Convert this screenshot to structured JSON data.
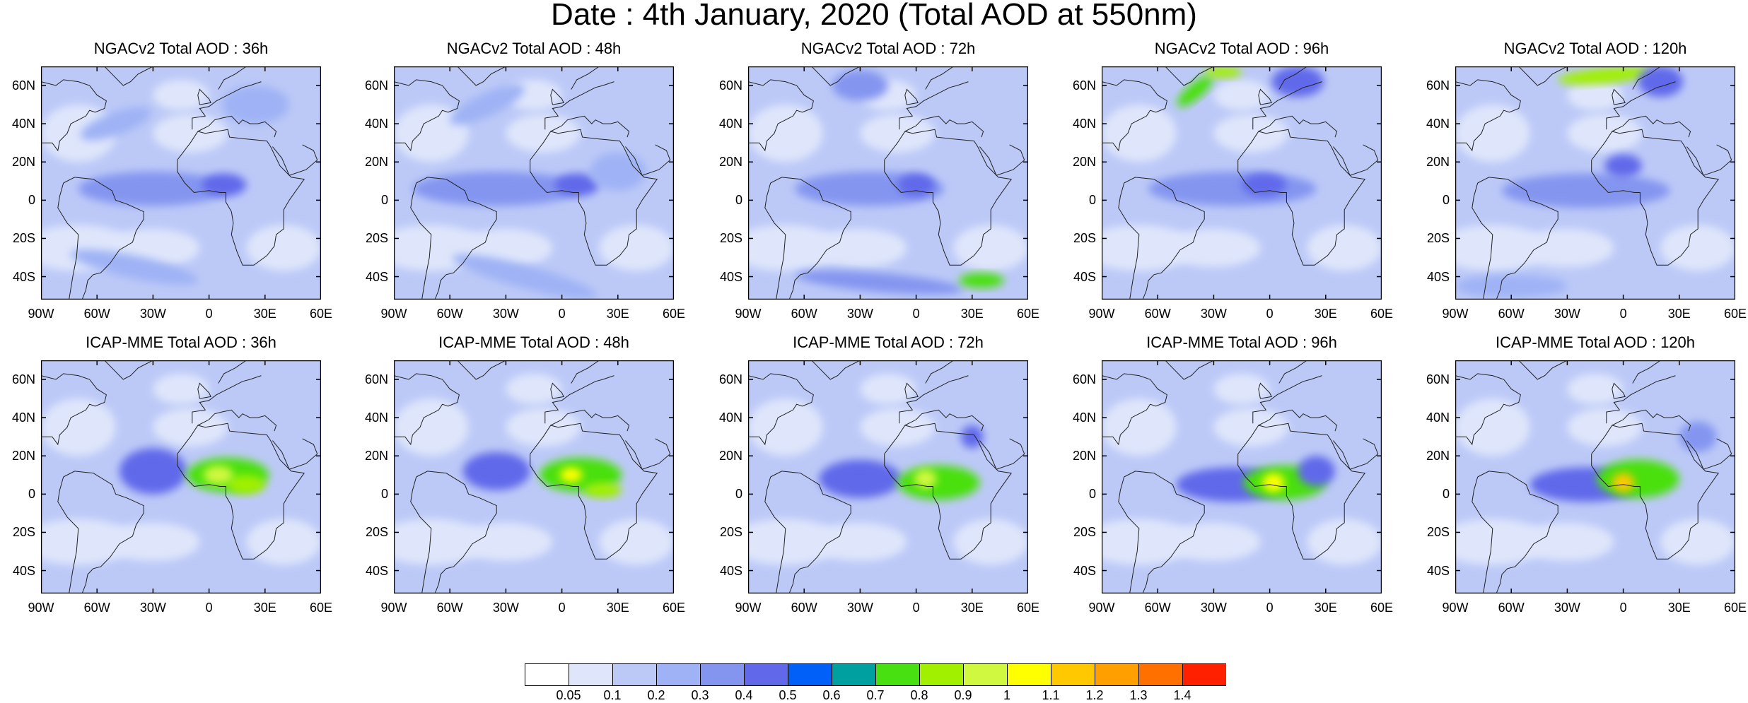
{
  "title": "Date : 4th January, 2020 (Total AOD at 550nm)",
  "lat_ticks": [
    "60N",
    "40N",
    "20N",
    "0",
    "20S",
    "40S"
  ],
  "lon_ticks": [
    "90W",
    "60W",
    "30W",
    "0",
    "30E",
    "60E"
  ],
  "rows": [
    {
      "model": "NGACv2",
      "panels": [
        {
          "title": "NGACv2 Total AOD : 36h"
        },
        {
          "title": "NGACv2 Total AOD : 48h"
        },
        {
          "title": "NGACv2 Total AOD : 72h"
        },
        {
          "title": "NGACv2 Total AOD : 96h"
        },
        {
          "title": "NGACv2 Total AOD : 120h"
        }
      ]
    },
    {
      "model": "ICAP-MME",
      "panels": [
        {
          "title": "ICAP-MME Total AOD : 36h"
        },
        {
          "title": "ICAP-MME Total AOD : 48h"
        },
        {
          "title": "ICAP-MME Total AOD : 72h"
        },
        {
          "title": "ICAP-MME Total AOD : 96h"
        },
        {
          "title": "ICAP-MME Total AOD : 120h"
        }
      ]
    }
  ],
  "colorbar": {
    "levels": [
      "0.05",
      "0.1",
      "0.2",
      "0.3",
      "0.4",
      "0.5",
      "0.6",
      "0.7",
      "0.8",
      "0.9",
      "1",
      "1.1",
      "1.2",
      "1.3",
      "1.4"
    ],
    "colors": [
      "#ffffff",
      "#dfe6fb",
      "#bcc9f7",
      "#9fb2f5",
      "#8495f0",
      "#6169ea",
      "#0060f8",
      "#00a0a0",
      "#48e010",
      "#a0f000",
      "#d0f840",
      "#ffff00",
      "#ffc800",
      "#ffa000",
      "#ff7000",
      "#ff2000"
    ]
  }
}
